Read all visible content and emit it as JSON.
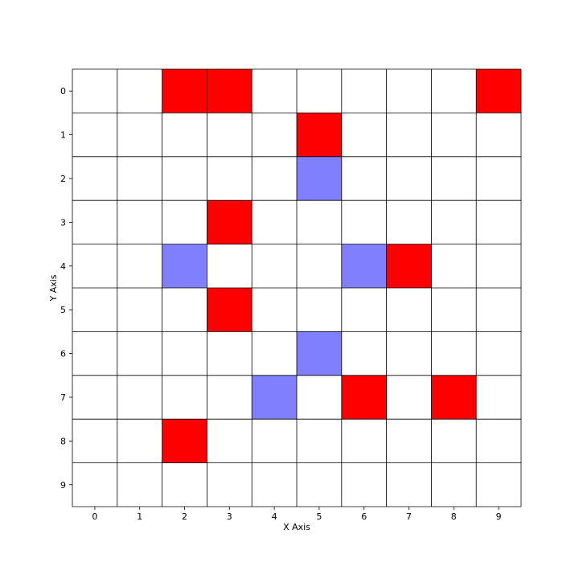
{
  "chart_data": {
    "type": "heatmap",
    "xlabel": "X Axis",
    "ylabel": "Y Axis",
    "x_ticks": [
      "0",
      "1",
      "2",
      "3",
      "4",
      "5",
      "6",
      "7",
      "8",
      "9"
    ],
    "y_ticks": [
      "0",
      "1",
      "2",
      "3",
      "4",
      "5",
      "6",
      "7",
      "8",
      "9"
    ],
    "grid": true,
    "colors": {
      "empty": "#ffffff",
      "red": "#ff0000",
      "blue": "#8080ff",
      "gridline": "#000000"
    },
    "cells": [
      {
        "x": 2,
        "y": 0,
        "color": "red"
      },
      {
        "x": 3,
        "y": 0,
        "color": "red"
      },
      {
        "x": 9,
        "y": 0,
        "color": "red"
      },
      {
        "x": 5,
        "y": 1,
        "color": "red"
      },
      {
        "x": 5,
        "y": 2,
        "color": "blue"
      },
      {
        "x": 3,
        "y": 3,
        "color": "red"
      },
      {
        "x": 2,
        "y": 4,
        "color": "blue"
      },
      {
        "x": 6,
        "y": 4,
        "color": "blue"
      },
      {
        "x": 7,
        "y": 4,
        "color": "red"
      },
      {
        "x": 3,
        "y": 5,
        "color": "red"
      },
      {
        "x": 5,
        "y": 6,
        "color": "blue"
      },
      {
        "x": 4,
        "y": 7,
        "color": "blue"
      },
      {
        "x": 6,
        "y": 7,
        "color": "red"
      },
      {
        "x": 8,
        "y": 7,
        "color": "red"
      },
      {
        "x": 2,
        "y": 8,
        "color": "red"
      }
    ]
  }
}
